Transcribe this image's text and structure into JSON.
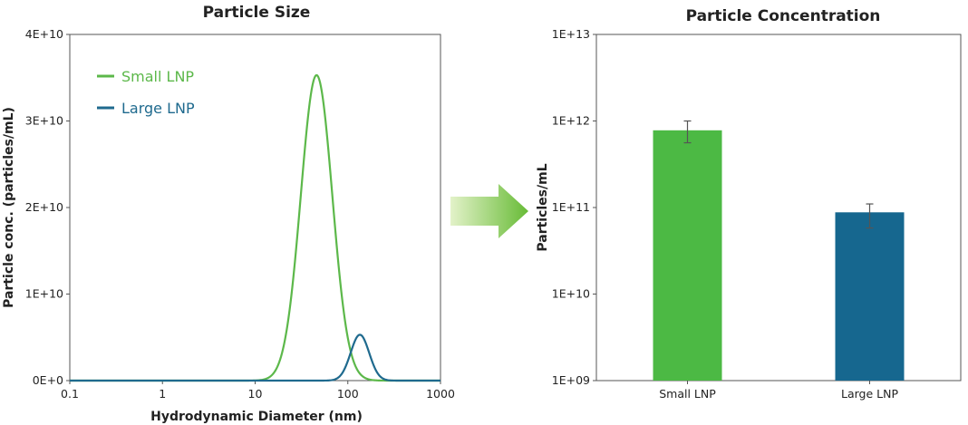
{
  "colors": {
    "small": "#5cb84a",
    "large": "#1f6a8e",
    "bar_small": "#4cb944",
    "bar_large": "#16678f",
    "arrow_start": "#e3f2c9",
    "arrow_end": "#67bb36",
    "axis": "#555555",
    "error": "#555555"
  },
  "chart_data": [
    {
      "type": "line",
      "title": "Particle Size",
      "xlabel": "Hydrodynamic Diameter (nm)",
      "ylabel": "Particle conc. (particles/mL)",
      "xscale": "log",
      "xlim": [
        0.1,
        1000
      ],
      "ylim": [
        0,
        40000000000.0
      ],
      "xticks": [
        0.1,
        1,
        10,
        100,
        1000
      ],
      "xtick_labels": [
        "0.1",
        "1",
        "10",
        "100",
        "1000"
      ],
      "yticks": [
        0,
        10000000000.0,
        20000000000.0,
        30000000000.0,
        40000000000.0
      ],
      "ytick_labels": [
        "0E+0",
        "1E+10",
        "2E+10",
        "3E+10",
        "4E+10"
      ],
      "legend": "top-left",
      "series": [
        {
          "name": "Small LNP",
          "color_key": "small",
          "peak_x": 46,
          "peak_y": 35300000000.0,
          "log_sigma": 0.17
        },
        {
          "name": "Large LNP",
          "color_key": "large",
          "peak_x": 135,
          "peak_y": 5300000000.0,
          "log_sigma": 0.1
        }
      ]
    },
    {
      "type": "bar",
      "title": "Particle Concentration",
      "xlabel": "",
      "ylabel": "Particles/mL",
      "yscale": "log",
      "ylim": [
        1000000000.0,
        10000000000000.0
      ],
      "yticks": [
        1000000000.0,
        10000000000.0,
        100000000000.0,
        1000000000000.0,
        10000000000000.0
      ],
      "ytick_labels": [
        "1E+09",
        "1E+10",
        "1E+11",
        "1E+12",
        "1E+13"
      ],
      "categories": [
        "Small LNP",
        "Large LNP"
      ],
      "values": [
        780000000000.0,
        88000000000.0
      ],
      "error_low": [
        560000000000.0,
        58000000000.0
      ],
      "error_high": [
        1000000000000.0,
        110000000000.0
      ],
      "color_keys": [
        "bar_small",
        "bar_large"
      ]
    }
  ]
}
